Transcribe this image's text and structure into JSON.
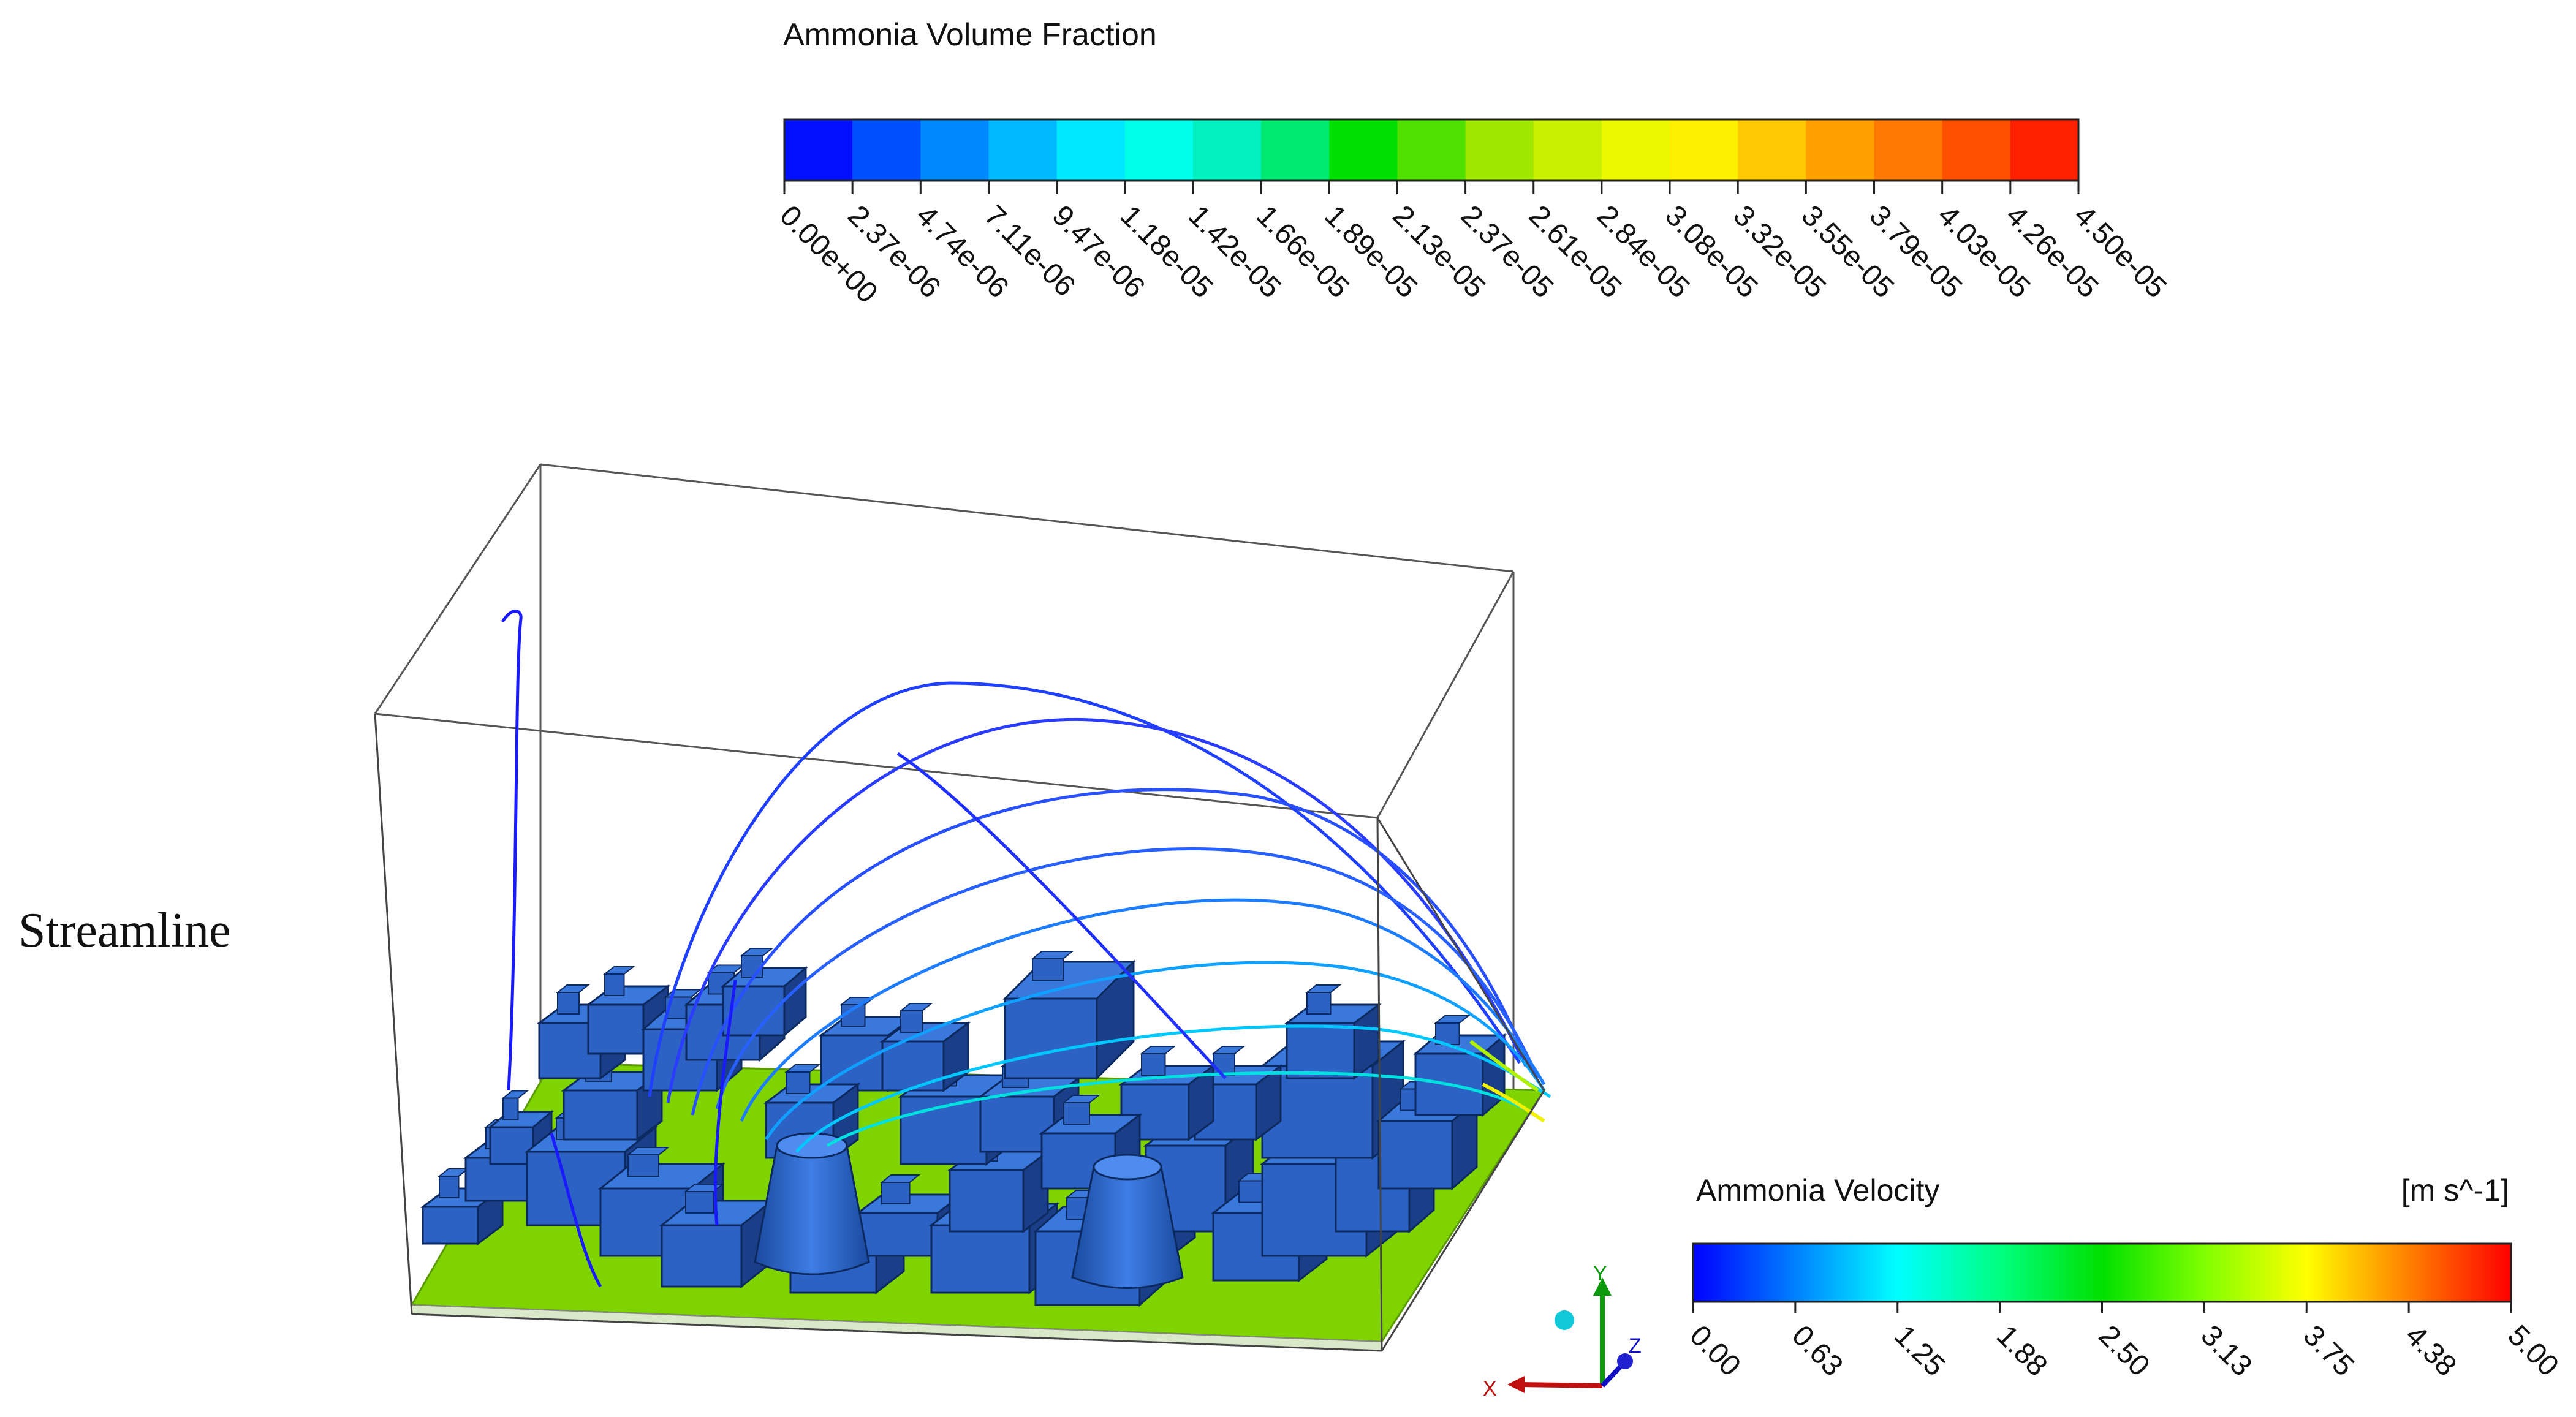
{
  "side_label": "Streamline",
  "volume_fraction_legend": {
    "title": "Ammonia Volume Fraction",
    "ticks": [
      "0.00e+00",
      "2.37e-06",
      "4.74e-06",
      "7.11e-06",
      "9.47e-06",
      "1.18e-05",
      "1.42e-05",
      "1.66e-05",
      "1.89e-05",
      "2.13e-05",
      "2.37e-05",
      "2.61e-05",
      "2.84e-05",
      "3.08e-05",
      "3.32e-05",
      "3.55e-05",
      "3.79e-05",
      "4.03e-05",
      "4.26e-05",
      "4.50e-05"
    ],
    "colors": [
      "#0010ff",
      "#0050ff",
      "#0088ff",
      "#00b8ff",
      "#00e8ff",
      "#00ffe8",
      "#00f0c0",
      "#00e870",
      "#00e000",
      "#50e000",
      "#a0e800",
      "#c8f000",
      "#ecf800",
      "#fff000",
      "#ffc800",
      "#ffa000",
      "#ff7800",
      "#ff5000",
      "#ff2000"
    ]
  },
  "velocity_legend": {
    "title": "Ammonia Velocity",
    "unit": "[m s^-1]",
    "ticks": [
      "0.00",
      "0.63",
      "1.25",
      "1.88",
      "2.50",
      "3.13",
      "3.75",
      "4.38",
      "5.00"
    ],
    "gradient": [
      "#0000ff",
      "#0080ff",
      "#00ffff",
      "#00ff80",
      "#00e000",
      "#80ff00",
      "#ffff00",
      "#ff8000",
      "#ff0000"
    ]
  },
  "axes_triad": {
    "x": "X",
    "y": "Y",
    "z": "Z"
  },
  "colors": {
    "building": "#2c62c4",
    "building_dark": "#1a3f88",
    "ground": "#7fd400",
    "streamline": "#1a1aff"
  }
}
